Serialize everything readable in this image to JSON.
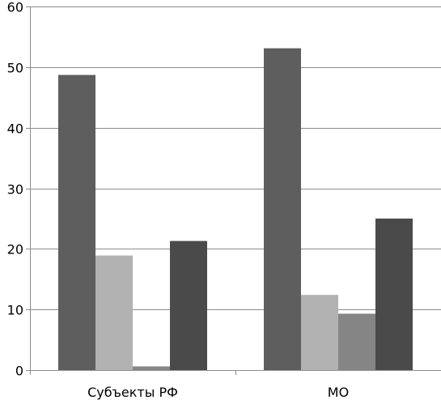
{
  "chart_data": {
    "type": "bar",
    "categories": [
      "Субъекты РФ",
      "МО"
    ],
    "series": [
      {
        "values": [
          48.7,
          53.1
        ],
        "color": "#5e5e5e"
      },
      {
        "values": [
          18.9,
          12.4
        ],
        "color": "#b2b2b2"
      },
      {
        "values": [
          0.6,
          9.3
        ],
        "color": "#858585"
      },
      {
        "values": [
          21.3,
          25.0
        ],
        "color": "#4a4a4a"
      }
    ],
    "yticks": [
      "0",
      "10",
      "20",
      "30",
      "40",
      "50",
      "60"
    ],
    "ylim": [
      0,
      60
    ],
    "grid": true,
    "legend": "none",
    "title": "",
    "xlabel": "",
    "ylabel": ""
  }
}
